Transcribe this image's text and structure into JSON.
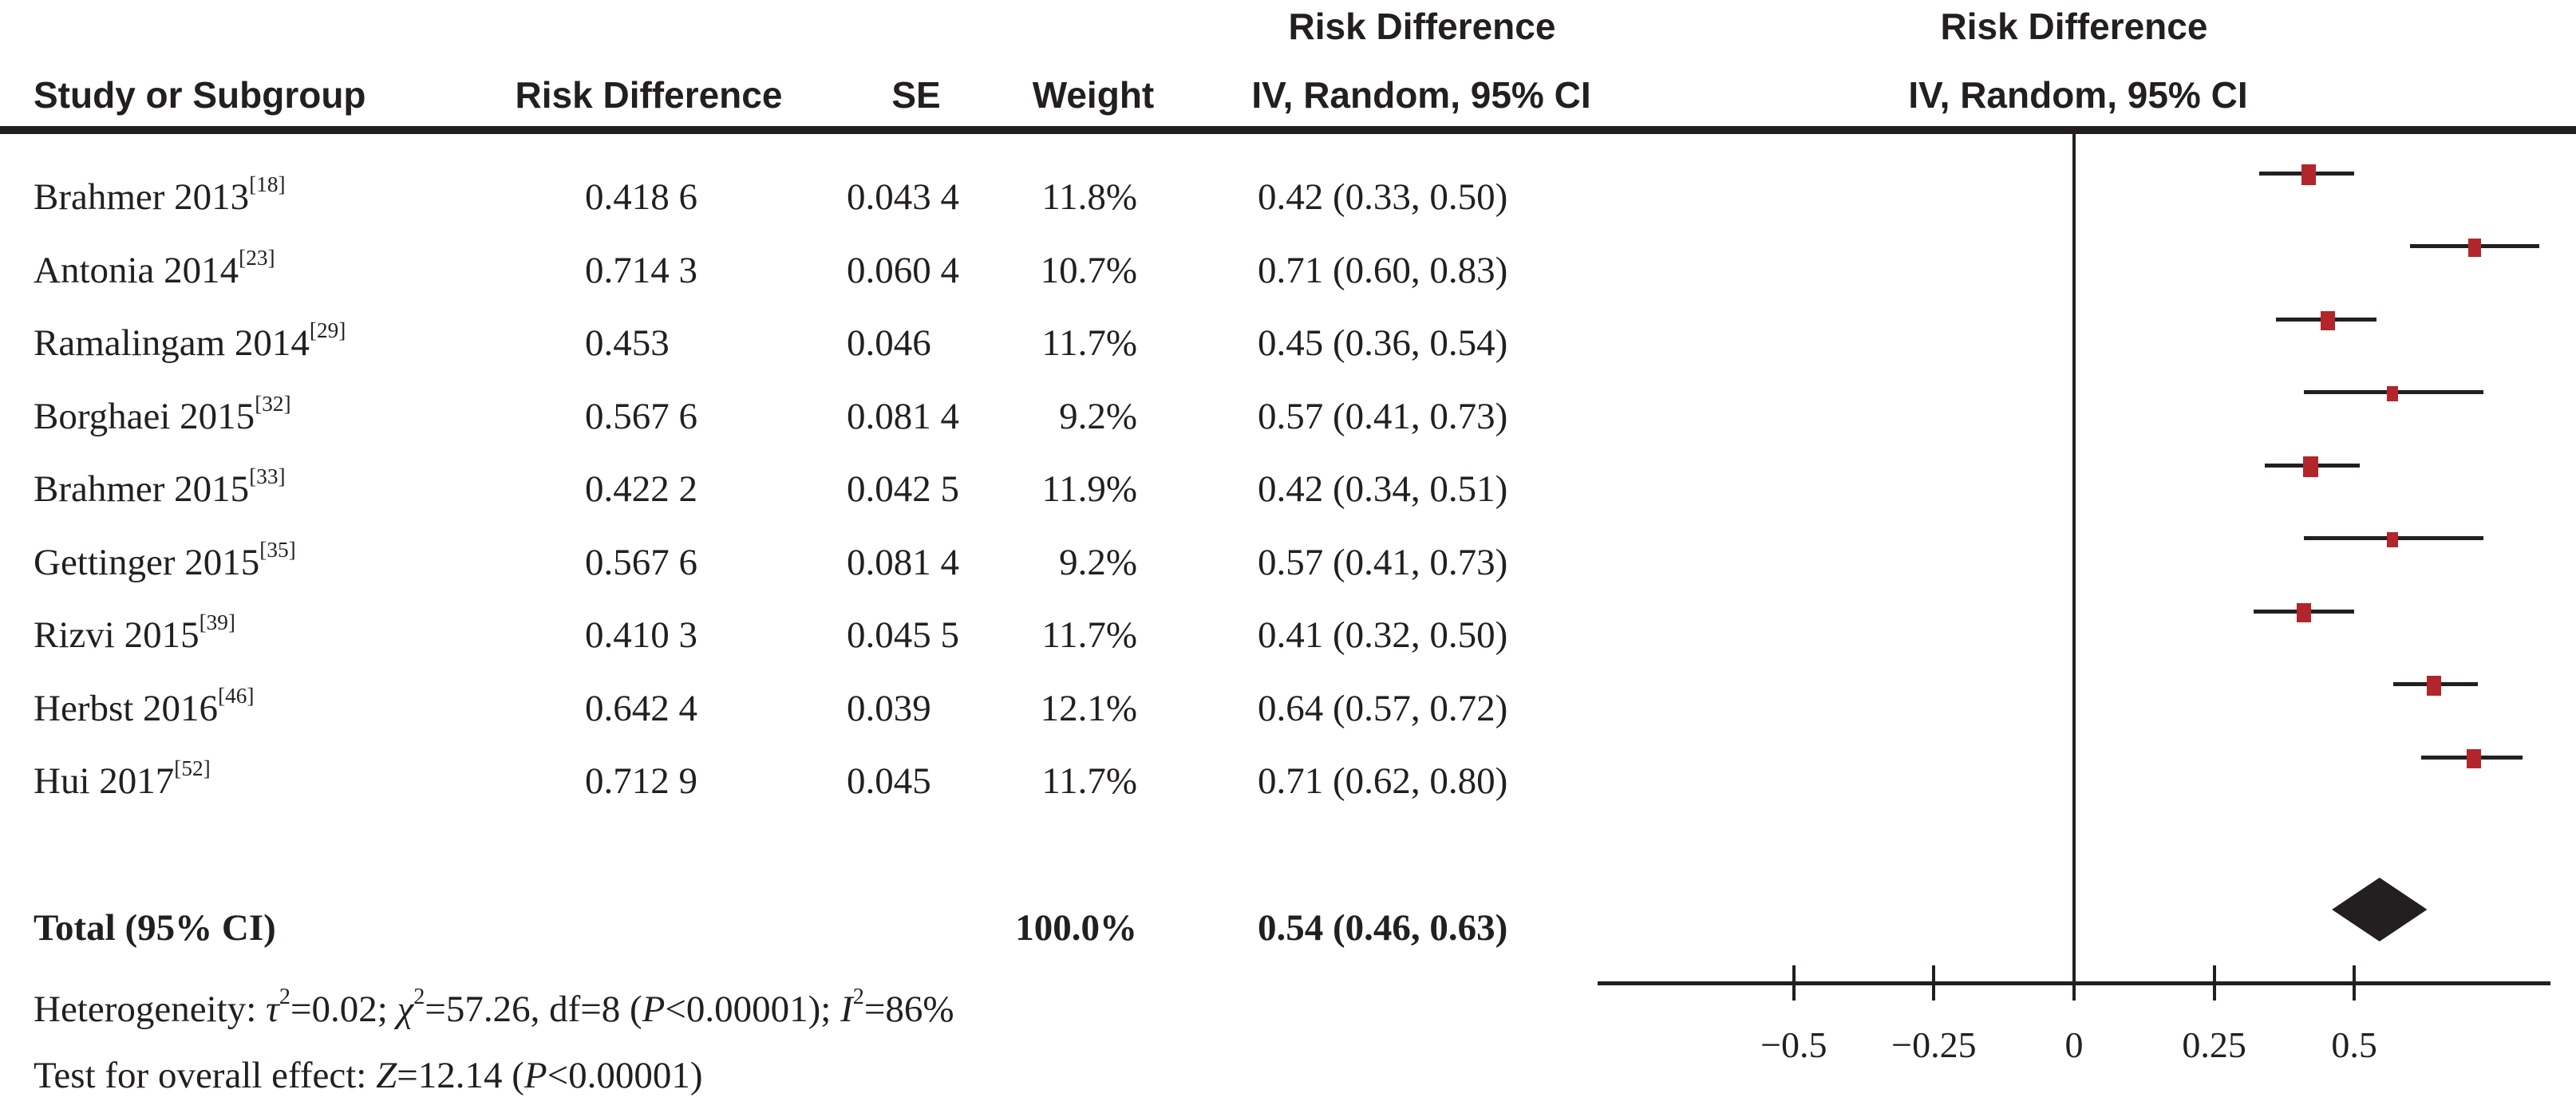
{
  "header": {
    "group_text_title": "Risk Difference",
    "group_text_subtitle": "IV, Random, 95% CI",
    "group_plot_title": "Risk Difference",
    "group_plot_subtitle": "IV, Random, 95% CI",
    "study": "Study or Subgroup",
    "risk_difference": "Risk Difference",
    "se": "SE",
    "weight": "Weight"
  },
  "chart_data": {
    "type": "forest",
    "effect_measure": "Risk Difference",
    "model": "IV, Random, 95% CI",
    "studies": [
      {
        "label": "Brahmer 2013",
        "ref": "[18]",
        "risk_difference": "0.418 6",
        "se": "0.043 4",
        "weight": "11.8%",
        "weight_value": 11.8,
        "ci_label": "0.42 (0.33, 0.50)",
        "estimate": 0.4186,
        "ci_low": 0.33,
        "ci_high": 0.5
      },
      {
        "label": "Antonia 2014",
        "ref": "[23]",
        "risk_difference": "0.714 3",
        "se": "0.060 4",
        "weight": "10.7%",
        "weight_value": 10.7,
        "ci_label": "0.71 (0.60, 0.83)",
        "estimate": 0.7143,
        "ci_low": 0.6,
        "ci_high": 0.83
      },
      {
        "label": "Ramalingam 2014",
        "ref": "[29]",
        "risk_difference": "0.453",
        "se": "0.046",
        "weight": "11.7%",
        "weight_value": 11.7,
        "ci_label": "0.45 (0.36, 0.54)",
        "estimate": 0.453,
        "ci_low": 0.36,
        "ci_high": 0.54
      },
      {
        "label": "Borghaei 2015",
        "ref": "[32]",
        "risk_difference": "0.567 6",
        "se": "0.081 4",
        "weight": "9.2%",
        "weight_value": 9.2,
        "ci_label": "0.57 (0.41, 0.73)",
        "estimate": 0.5676,
        "ci_low": 0.41,
        "ci_high": 0.73
      },
      {
        "label": "Brahmer 2015",
        "ref": "[33]",
        "risk_difference": "0.422 2",
        "se": "0.042 5",
        "weight": "11.9%",
        "weight_value": 11.9,
        "ci_label": "0.42 (0.34, 0.51)",
        "estimate": 0.4222,
        "ci_low": 0.34,
        "ci_high": 0.51
      },
      {
        "label": "Gettinger 2015",
        "ref": "[35]",
        "risk_difference": "0.567 6",
        "se": "0.081 4",
        "weight": "9.2%",
        "weight_value": 9.2,
        "ci_label": "0.57 (0.41, 0.73)",
        "estimate": 0.5676,
        "ci_low": 0.41,
        "ci_high": 0.73
      },
      {
        "label": "Rizvi 2015",
        "ref": "[39]",
        "risk_difference": "0.410 3",
        "se": "0.045 5",
        "weight": "11.7%",
        "weight_value": 11.7,
        "ci_label": "0.41 (0.32, 0.50)",
        "estimate": 0.4103,
        "ci_low": 0.32,
        "ci_high": 0.5
      },
      {
        "label": "Herbst 2016",
        "ref": "[46]",
        "risk_difference": "0.642 4",
        "se": "0.039",
        "weight": "12.1%",
        "weight_value": 12.1,
        "ci_label": "0.64 (0.57, 0.72)",
        "estimate": 0.6424,
        "ci_low": 0.57,
        "ci_high": 0.72
      },
      {
        "label": "Hui 2017",
        "ref": "[52]",
        "risk_difference": "0.712 9",
        "se": "0.045",
        "weight": "11.7%",
        "weight_value": 11.7,
        "ci_label": "0.71 (0.62, 0.80)",
        "estimate": 0.7129,
        "ci_low": 0.62,
        "ci_high": 0.8
      }
    ],
    "total": {
      "label": "Total (95% CI)",
      "weight": "100.0%",
      "weight_value": 100.0,
      "ci_label": "0.54 (0.46, 0.63)",
      "estimate": 0.54,
      "ci_low": 0.46,
      "ci_high": 0.63
    },
    "x_axis": {
      "tick_values": [
        -0.5,
        -0.25,
        0,
        0.25,
        0.5
      ],
      "tick_labels": [
        "−0.5",
        "−0.25",
        "0",
        "0.25",
        "0.5"
      ],
      "range": [
        -0.85,
        0.85
      ],
      "zero_line": 0,
      "grid": false
    }
  },
  "footnotes": {
    "heterogeneity": [
      {
        "text": "Heterogeneity: "
      },
      {
        "text": "τ",
        "italic": true
      },
      {
        "text": "2",
        "sup": true
      },
      {
        "text": "=0.02; "
      },
      {
        "text": "χ",
        "italic": true
      },
      {
        "text": "2",
        "sup": true
      },
      {
        "text": "=57.26, df=8 ("
      },
      {
        "text": "P",
        "italic": true
      },
      {
        "text": "<0.00001); "
      },
      {
        "text": "I",
        "italic": true
      },
      {
        "text": "2",
        "sup": true
      },
      {
        "text": "=86%"
      }
    ],
    "overall_effect": [
      {
        "text": "Test for overall effect: "
      },
      {
        "text": "Z",
        "italic": true
      },
      {
        "text": "=12.14 ("
      },
      {
        "text": "P",
        "italic": true
      },
      {
        "text": "<0.00001)"
      }
    ]
  },
  "colors": {
    "background": "#ffffff",
    "text": "#231f20",
    "line": "#231f20",
    "marker": "#b2262b"
  }
}
